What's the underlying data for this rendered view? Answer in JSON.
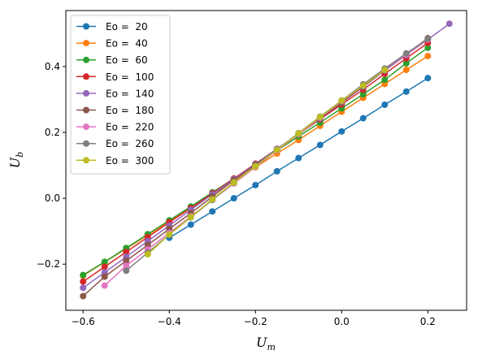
{
  "chart_data": {
    "type": "line",
    "title": "",
    "xlabel": "U",
    "xlabel_sub": "m",
    "ylabel": "U",
    "ylabel_sub": "b",
    "xlim": [
      -0.64,
      0.29
    ],
    "ylim": [
      -0.34,
      0.57
    ],
    "xticks": [
      -0.6,
      -0.4,
      -0.2,
      0.0,
      0.2
    ],
    "xtick_labels": [
      "−0.6",
      "−0.4",
      "−0.2",
      "0.0",
      "0.2"
    ],
    "yticks": [
      -0.2,
      0.0,
      0.2,
      0.4
    ],
    "ytick_labels": [
      "−0.2",
      "0.0",
      "0.2",
      "0.4"
    ],
    "grid": false,
    "legend_position": "top-left",
    "series": [
      {
        "name": "Eo =  20",
        "color": "#1f77b4",
        "x": [
          -0.4,
          -0.35,
          -0.3,
          -0.25,
          -0.2,
          -0.15,
          -0.1,
          -0.05,
          0.0,
          0.05,
          0.1,
          0.15,
          0.2
        ],
        "y": [
          -0.12,
          -0.08,
          -0.04,
          0.0,
          0.04,
          0.082,
          0.122,
          0.162,
          0.203,
          0.243,
          0.284,
          0.324,
          0.365
        ]
      },
      {
        "name": "Eo =  40",
        "color": "#ff7f0e",
        "x": [
          -0.6,
          -0.55,
          -0.5,
          -0.45,
          -0.4,
          -0.35,
          -0.3,
          -0.25,
          -0.2,
          -0.15,
          -0.1,
          -0.05,
          0.0,
          0.05,
          0.1,
          0.15,
          0.2
        ],
        "y": [
          -0.235,
          -0.194,
          -0.153,
          -0.112,
          -0.07,
          -0.029,
          0.012,
          0.053,
          0.094,
          0.136,
          0.177,
          0.22,
          0.263,
          0.305,
          0.347,
          0.39,
          0.432
        ]
      },
      {
        "name": "Eo =  60",
        "color": "#2ca02c",
        "x": [
          -0.6,
          -0.55,
          -0.5,
          -0.45,
          -0.4,
          -0.35,
          -0.3,
          -0.25,
          -0.2,
          -0.15,
          -0.1,
          -0.05,
          0.0,
          0.05,
          0.1,
          0.15,
          0.2
        ],
        "y": [
          -0.233,
          -0.193,
          -0.151,
          -0.109,
          -0.067,
          -0.025,
          0.018,
          0.06,
          0.102,
          0.145,
          0.188,
          0.23,
          0.273,
          0.316,
          0.36,
          0.41,
          0.457
        ]
      },
      {
        "name": "Eo =  100",
        "color": "#d62728",
        "x": [
          -0.6,
          -0.55,
          -0.5,
          -0.45,
          -0.4,
          -0.35,
          -0.3,
          -0.25,
          -0.2,
          -0.15,
          -0.1,
          -0.05,
          0.0,
          0.05,
          0.1,
          0.15,
          0.2
        ],
        "y": [
          -0.253,
          -0.208,
          -0.163,
          -0.118,
          -0.073,
          -0.03,
          0.015,
          0.06,
          0.105,
          0.15,
          0.195,
          0.24,
          0.285,
          0.33,
          0.378,
          0.425,
          0.472
        ]
      },
      {
        "name": "Eo =  140",
        "color": "#9467bd",
        "x": [
          -0.6,
          -0.55,
          -0.5,
          -0.45,
          -0.4,
          -0.35,
          -0.3,
          -0.25,
          -0.2,
          -0.15,
          -0.1,
          -0.05,
          0.0,
          0.05,
          0.1,
          0.15,
          0.2,
          0.25
        ],
        "y": [
          -0.272,
          -0.225,
          -0.178,
          -0.13,
          -0.083,
          -0.035,
          0.012,
          0.058,
          0.104,
          0.15,
          0.196,
          0.242,
          0.29,
          0.338,
          0.388,
          0.435,
          0.482,
          0.53
        ]
      },
      {
        "name": "Eo =  180",
        "color": "#8c564b",
        "x": [
          -0.6,
          -0.55,
          -0.5,
          -0.45,
          -0.4,
          -0.35,
          -0.3,
          -0.25,
          -0.2,
          -0.15,
          -0.1,
          -0.05,
          0.0,
          0.05,
          0.1,
          0.15,
          0.2
        ],
        "y": [
          -0.297,
          -0.238,
          -0.19,
          -0.142,
          -0.093,
          -0.045,
          0.005,
          0.055,
          0.102,
          0.148,
          0.195,
          0.243,
          0.29,
          0.34,
          0.39,
          0.438,
          0.486
        ]
      },
      {
        "name": "Eo =  220",
        "color": "#e377c2",
        "x": [
          -0.55,
          -0.5,
          -0.45,
          -0.4,
          -0.35,
          -0.3,
          -0.25,
          -0.2,
          -0.15,
          -0.1,
          -0.05,
          0.0,
          0.05,
          0.1,
          0.15,
          0.2
        ],
        "y": [
          -0.265,
          -0.205,
          -0.155,
          -0.105,
          -0.055,
          -0.005,
          0.045,
          0.095,
          0.145,
          0.195,
          0.245,
          0.295,
          0.342,
          0.392,
          0.437,
          0.482
        ]
      },
      {
        "name": "Eo =  260",
        "color": "#7f7f7f",
        "x": [
          -0.5,
          -0.45,
          -0.4,
          -0.35,
          -0.3,
          -0.25,
          -0.2,
          -0.15,
          -0.1,
          -0.05,
          0.0,
          0.05,
          0.1,
          0.15,
          0.2
        ],
        "y": [
          -0.22,
          -0.165,
          -0.11,
          -0.058,
          -0.005,
          0.048,
          0.098,
          0.148,
          0.198,
          0.248,
          0.297,
          0.346,
          0.394,
          0.44,
          0.484
        ]
      },
      {
        "name": "Eo =  300",
        "color": "#bcbd22",
        "x": [
          -0.45,
          -0.4,
          -0.35,
          -0.3,
          -0.25,
          -0.2,
          -0.15,
          -0.1,
          -0.05,
          0.0,
          0.05,
          0.1
        ],
        "y": [
          -0.17,
          -0.11,
          -0.057,
          -0.003,
          0.048,
          0.097,
          0.147,
          0.197,
          0.247,
          0.297,
          0.342,
          0.39
        ]
      }
    ]
  }
}
